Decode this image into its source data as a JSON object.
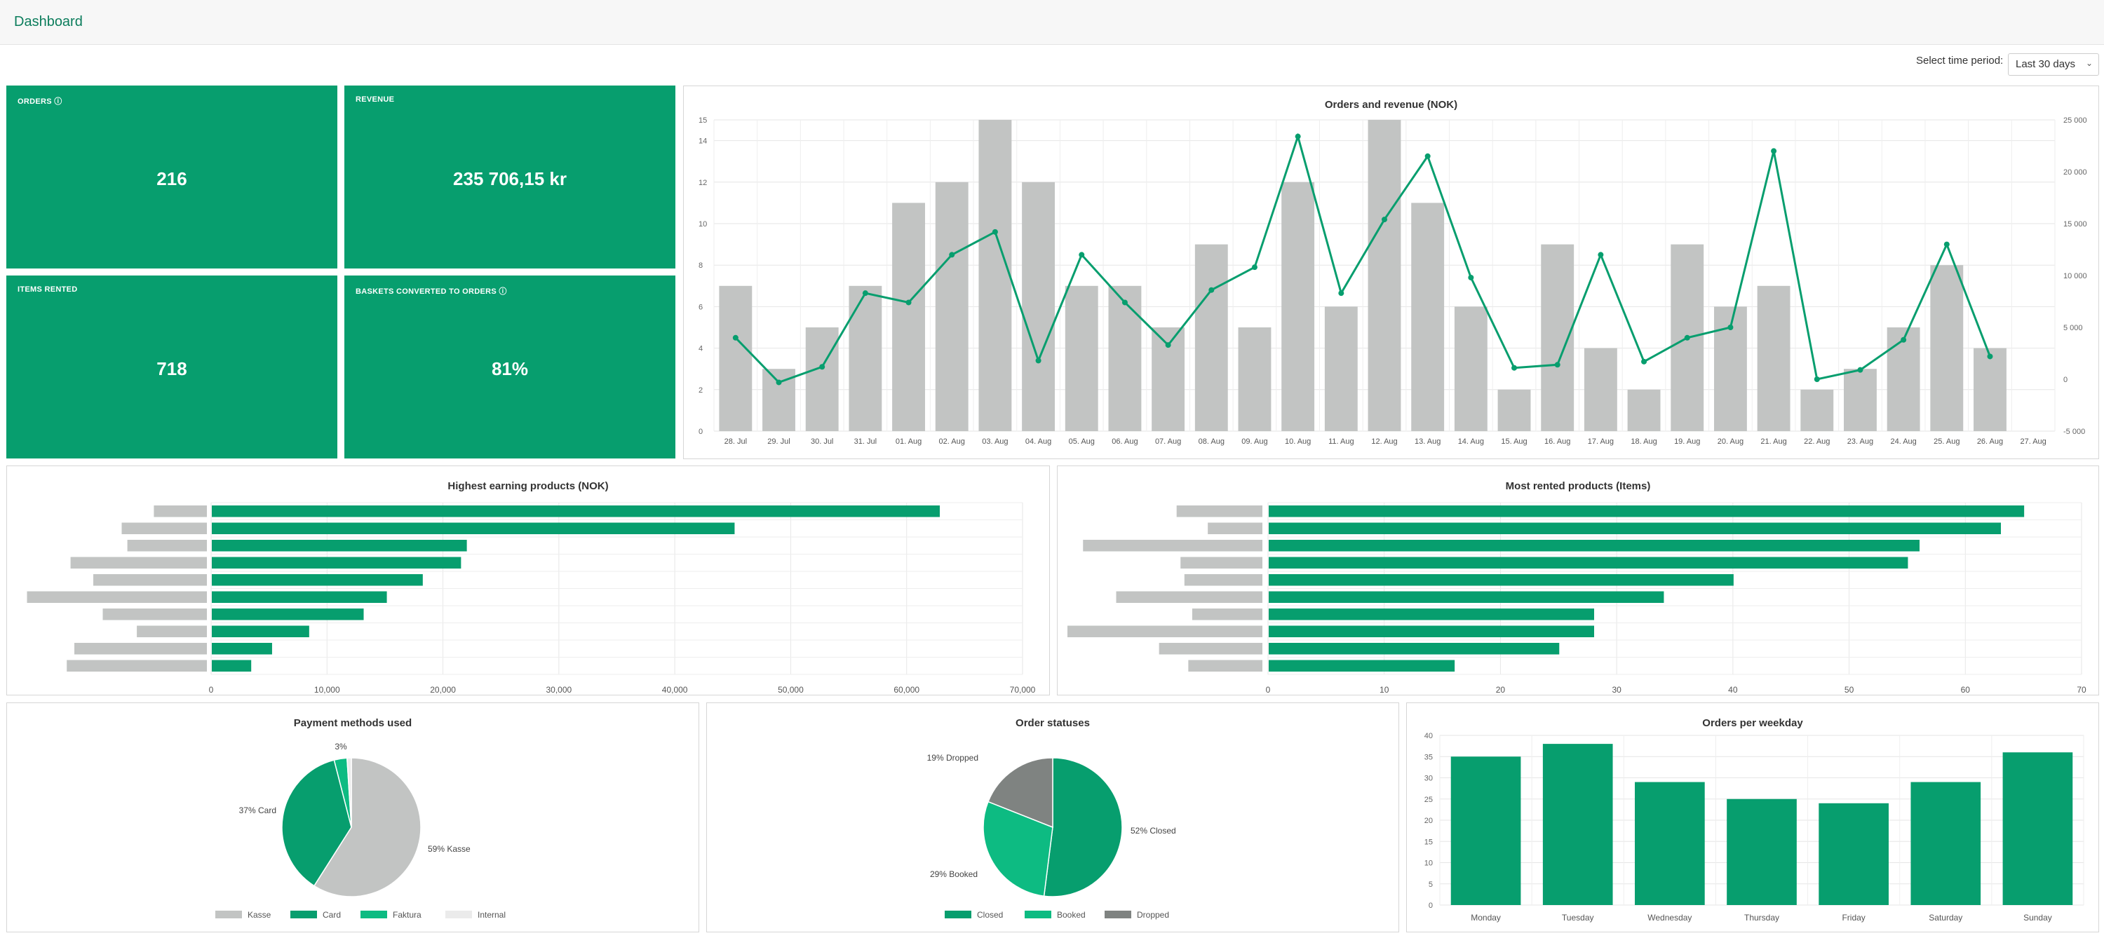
{
  "header": {
    "title": "Dashboard"
  },
  "filter": {
    "label": "Select time period:",
    "value": "Last 30 days"
  },
  "kpis": {
    "orders": {
      "label": "ORDERS ⓘ",
      "value": "216"
    },
    "revenue": {
      "label": "REVENUE",
      "value": "235 706,15 kr"
    },
    "items": {
      "label": "ITEMS RENTED",
      "value": "718"
    },
    "baskets": {
      "label": "BASKETS CONVERTED TO ORDERS ⓘ",
      "value": "81%"
    }
  },
  "colors": {
    "green": "#079e6e",
    "gray": "#c2c4c3",
    "bright": "#0dbb82",
    "dark_gray": "#7f8381",
    "light": "#e8e8e8"
  },
  "chart_data": [
    {
      "type": "bar",
      "title": "Orders and revenue (NOK)",
      "categories": [
        "28. Jul",
        "29. Jul",
        "30. Jul",
        "31. Jul",
        "01. Aug",
        "02. Aug",
        "03. Aug",
        "04. Aug",
        "05. Aug",
        "06. Aug",
        "07. Aug",
        "08. Aug",
        "09. Aug",
        "10. Aug",
        "11. Aug",
        "12. Aug",
        "13. Aug",
        "14. Aug",
        "15. Aug",
        "16. Aug",
        "17. Aug",
        "18. Aug",
        "19. Aug",
        "20. Aug",
        "21. Aug",
        "22. Aug",
        "23. Aug",
        "24. Aug",
        "25. Aug",
        "26. Aug",
        "27. Aug"
      ],
      "series": [
        {
          "values": [
            7,
            3,
            5,
            7,
            11,
            12,
            15,
            12,
            7,
            7,
            5,
            9,
            5,
            12,
            6,
            15,
            11,
            6,
            2,
            9,
            4,
            2,
            9,
            6,
            7,
            2,
            3,
            5,
            8,
            4,
            0
          ]
        },
        {
          "values": [
            4000,
            -300,
            1200,
            8300,
            7400,
            12000,
            14200,
            1800,
            12000,
            7400,
            3300,
            8600,
            10800,
            23400,
            8300,
            15400,
            21500,
            9800,
            1100,
            1400,
            12000,
            1700,
            4000,
            5000,
            22000,
            0,
            900,
            3800,
            13000,
            2200,
            null
          ]
        }
      ],
      "ylim": [
        0,
        15
      ],
      "yticks": [
        0,
        2,
        4,
        6,
        8,
        10,
        12,
        14,
        15
      ],
      "y2lim": [
        -5000,
        25000
      ],
      "y2ticks": [
        "-5 000",
        "0",
        "5 000",
        "10 000",
        "15 000",
        "20 000",
        "25 000"
      ],
      "grid": true
    },
    {
      "type": "bar",
      "title": "Highest earning products (NOK)",
      "orientation": "horizontal",
      "values": [
        62800,
        45100,
        22000,
        21500,
        18200,
        15100,
        13100,
        8400,
        5200,
        3400
      ],
      "xlim": [
        0,
        70000
      ],
      "xticks": [
        "0",
        "10,000",
        "20,000",
        "30,000",
        "40,000",
        "50,000",
        "60,000",
        "70,000"
      ],
      "category_label_widths": [
        0.28,
        0.45,
        0.42,
        0.72,
        0.6,
        0.95,
        0.55,
        0.37,
        0.7,
        0.74
      ],
      "grid": true
    },
    {
      "type": "bar",
      "title": "Most rented products (Items)",
      "orientation": "horizontal",
      "values": [
        65,
        63,
        56,
        55,
        40,
        34,
        28,
        28,
        25,
        16
      ],
      "xlim": [
        0,
        70
      ],
      "xticks": [
        "0",
        "10",
        "20",
        "30",
        "40",
        "50",
        "60",
        "70"
      ],
      "category_label_widths": [
        0.44,
        0.28,
        0.92,
        0.42,
        0.4,
        0.75,
        0.36,
        1.0,
        0.53,
        0.38
      ],
      "grid": true
    },
    {
      "type": "pie",
      "title": "Payment methods used",
      "labels": [
        "Kasse",
        "Card",
        "Faktura",
        "Internal"
      ],
      "values": [
        59,
        37,
        3,
        1
      ],
      "slice_labels": [
        "59% Kasse",
        "37% Card",
        "3%",
        ""
      ],
      "legend": "bottom"
    },
    {
      "type": "pie",
      "title": "Order statuses",
      "labels": [
        "Closed",
        "Booked",
        "Dropped"
      ],
      "values": [
        52,
        29,
        19
      ],
      "slice_labels": [
        "52% Closed",
        "29% Booked",
        "19% Dropped"
      ],
      "legend": "bottom"
    },
    {
      "type": "bar",
      "title": "Orders per weekday",
      "categories": [
        "Monday",
        "Tuesday",
        "Wednesday",
        "Thursday",
        "Friday",
        "Saturday",
        "Sunday"
      ],
      "values": [
        35,
        38,
        29,
        25,
        24,
        29,
        36
      ],
      "ylim": [
        0,
        40
      ],
      "yticks": [
        0,
        5,
        10,
        15,
        20,
        25,
        30,
        35,
        40
      ],
      "grid": true
    }
  ]
}
